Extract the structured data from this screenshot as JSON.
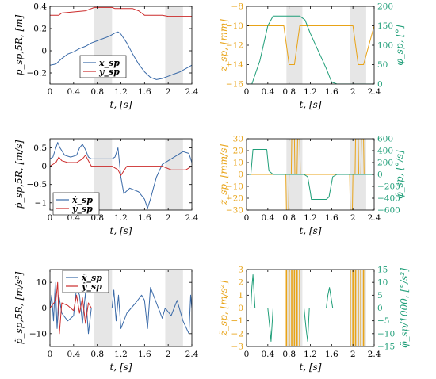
{
  "colors": {
    "blue": "#3a6aa8",
    "red": "#cc2b2b",
    "orange": "#e8a317",
    "green": "#1f9e78",
    "shade": "#e6e6e6"
  },
  "chart_data": [
    {
      "type": "line",
      "id": "pos-xy",
      "xlabel": "t, [s]",
      "ylabel": "p_sp,5R, [m]",
      "xlim": [
        0,
        2.4
      ],
      "ylim": [
        -0.3,
        0.4
      ],
      "xticks": [
        "0",
        "0.4",
        "0.8",
        "1.2",
        "1.6",
        "2",
        "2.4"
      ],
      "yticks": [
        "0.4",
        "0.2",
        "0",
        "−0.2"
      ],
      "shaded_intervals": [
        [
          0.75,
          1.05
        ],
        [
          1.95,
          2.25
        ]
      ],
      "legend": [
        "x_sp",
        "y_sp"
      ],
      "series": [
        {
          "name": "x_sp",
          "color": "blue",
          "x": [
            0,
            0.1,
            0.2,
            0.3,
            0.4,
            0.5,
            0.6,
            0.7,
            0.8,
            0.9,
            1.0,
            1.1,
            1.15,
            1.2,
            1.3,
            1.4,
            1.5,
            1.6,
            1.7,
            1.8,
            1.9,
            2.0,
            2.1,
            2.2,
            2.3,
            2.4
          ],
          "y": [
            -0.13,
            -0.12,
            -0.07,
            -0.03,
            -0.01,
            0.02,
            0.04,
            0.07,
            0.09,
            0.11,
            0.13,
            0.16,
            0.17,
            0.15,
            0.07,
            -0.03,
            -0.12,
            -0.19,
            -0.24,
            -0.26,
            -0.25,
            -0.23,
            -0.21,
            -0.19,
            -0.16,
            -0.13
          ]
        },
        {
          "name": "y_sp",
          "color": "red",
          "x": [
            0,
            0.15,
            0.2,
            0.4,
            0.6,
            0.7,
            0.75,
            1.05,
            1.1,
            1.4,
            1.5,
            1.6,
            1.9,
            2.0,
            2.4
          ],
          "y": [
            0.32,
            0.32,
            0.34,
            0.35,
            0.36,
            0.38,
            0.39,
            0.39,
            0.38,
            0.38,
            0.36,
            0.32,
            0.32,
            0.31,
            0.31
          ]
        }
      ]
    },
    {
      "type": "line",
      "id": "pos-z-phi",
      "xlabel": "t, [s]",
      "ylabel": "z_sp, [mm]",
      "y2label": "φ_sp, [°]",
      "xlim": [
        0,
        2.4
      ],
      "ylim": [
        -16,
        -8
      ],
      "y2lim": [
        0,
        200
      ],
      "xticks": [
        "0",
        "0.4",
        "0.8",
        "1.2",
        "1.6",
        "2",
        "2.4"
      ],
      "yticks": [
        "−8",
        "−10",
        "−12",
        "−14",
        "−16"
      ],
      "y2ticks": [
        "200",
        "150",
        "100",
        "50",
        "0"
      ],
      "shaded_intervals": [
        [
          0.75,
          1.05
        ],
        [
          1.95,
          2.25
        ]
      ],
      "series": [
        {
          "name": "z_sp",
          "color": "orange",
          "axis": "left",
          "x": [
            0,
            0.7,
            0.8,
            0.9,
            1.0,
            2.0,
            2.1,
            2.2,
            2.4
          ],
          "y": [
            -10,
            -10,
            -14,
            -14,
            -10,
            -10,
            -14,
            -14,
            -10
          ]
        },
        {
          "name": "φ_sp",
          "color": "green",
          "axis": "right",
          "x": [
            0,
            0.1,
            0.25,
            0.4,
            0.5,
            1.0,
            1.1,
            1.2,
            1.5,
            1.6,
            1.7,
            2.4
          ],
          "y": [
            0,
            0,
            60,
            150,
            175,
            175,
            165,
            130,
            40,
            5,
            0,
            0
          ]
        }
      ]
    },
    {
      "type": "line",
      "id": "vel-xy",
      "xlabel": "t, [s]",
      "ylabel": "ṗ_sp,5R, [m/s]",
      "xlim": [
        0,
        2.4
      ],
      "ylim": [
        -1.2,
        0.75
      ],
      "xticks": [
        "0",
        "0.4",
        "0.8",
        "1.2",
        "1.6",
        "2",
        "2.4"
      ],
      "yticks": [
        "0.5",
        "0",
        "−0.5",
        "−1"
      ],
      "shaded_intervals": [
        [
          0.75,
          1.05
        ],
        [
          1.95,
          2.25
        ]
      ],
      "legend": [
        "ẋ_sp",
        "ẏ_sp"
      ],
      "series": [
        {
          "name": "ẋ_sp",
          "color": "blue",
          "x": [
            0,
            0.05,
            0.1,
            0.13,
            0.17,
            0.25,
            0.35,
            0.45,
            0.5,
            0.55,
            0.6,
            0.65,
            0.7,
            1.05,
            1.1,
            1.15,
            1.2,
            1.25,
            1.35,
            1.5,
            1.6,
            1.65,
            1.7,
            1.75,
            1.8,
            1.9,
            2.05,
            2.15,
            2.25,
            2.35,
            2.38,
            2.4
          ],
          "y": [
            0.2,
            0.25,
            0.5,
            0.65,
            0.5,
            0.3,
            0.25,
            0.3,
            0.5,
            0.6,
            0.45,
            0.25,
            0.2,
            0.2,
            0.25,
            0.5,
            -0.3,
            -0.75,
            -0.6,
            -0.7,
            -0.9,
            -1.15,
            -0.9,
            -0.6,
            -0.3,
            0.05,
            0.2,
            0.3,
            0.4,
            0.35,
            0.2,
            0.1
          ]
        },
        {
          "name": "ẏ_sp",
          "color": "red",
          "x": [
            0,
            0.1,
            0.15,
            0.2,
            0.3,
            0.45,
            0.55,
            0.6,
            0.7,
            1.05,
            1.15,
            1.2,
            1.3,
            1.9,
            2.05,
            2.2,
            2.3,
            2.4
          ],
          "y": [
            0,
            0.1,
            0.25,
            0.15,
            0.1,
            0.1,
            0.2,
            0.3,
            0,
            0,
            -0.1,
            -0.25,
            0,
            0,
            -0.1,
            -0.1,
            -0.1,
            0
          ]
        }
      ]
    },
    {
      "type": "line",
      "id": "vel-z-phi",
      "xlabel": "t, [s]",
      "ylabel": "ż_sp, [mm/s]",
      "y2label": "φ̇_sp, [°/s]",
      "xlim": [
        0,
        2.4
      ],
      "ylim": [
        -30,
        30
      ],
      "y2lim": [
        -600,
        600
      ],
      "xticks": [
        "0",
        "0.4",
        "0.8",
        "1.2",
        "1.6",
        "2",
        "2.4"
      ],
      "yticks": [
        "30",
        "20",
        "10",
        "0",
        "−10",
        "−20",
        "−30"
      ],
      "y2ticks": [
        "600",
        "400",
        "200",
        "0",
        "−200",
        "−400",
        "−600"
      ],
      "shaded_intervals": [
        [
          0.75,
          1.05
        ],
        [
          1.95,
          2.25
        ]
      ],
      "series": [
        {
          "name": "ż_sp",
          "color": "orange",
          "axis": "left",
          "x": [
            0,
            0.74,
            0.75,
            0.79,
            0.8,
            0.84,
            0.85,
            0.9,
            0.91,
            0.95,
            0.96,
            1.0,
            1.01,
            1.94,
            1.95,
            1.99,
            2.0,
            2.04,
            2.05,
            2.1,
            2.11,
            2.15,
            2.16,
            2.2,
            2.21,
            2.4
          ],
          "y": [
            0,
            0,
            -30,
            -30,
            0,
            0,
            30,
            30,
            0,
            0,
            30,
            30,
            0,
            0,
            -30,
            -30,
            0,
            0,
            30,
            30,
            0,
            0,
            30,
            30,
            0,
            0
          ]
        },
        {
          "name": "φ̇_sp",
          "color": "green",
          "axis": "right",
          "x": [
            0,
            0.08,
            0.12,
            0.38,
            0.42,
            0.5,
            1.08,
            1.15,
            1.2,
            1.22,
            1.5,
            1.55,
            1.62,
            1.7,
            2.4
          ],
          "y": [
            0,
            0,
            420,
            420,
            60,
            0,
            0,
            -40,
            -300,
            -420,
            -420,
            -380,
            -40,
            0,
            0
          ]
        }
      ]
    },
    {
      "type": "line",
      "id": "acc-xy",
      "xlabel": "t, [s]",
      "ylabel": "p̈_sp,5R, [m/s²]",
      "xlim": [
        0,
        2.4
      ],
      "ylim": [
        -15,
        15
      ],
      "xticks": [
        "0",
        "0.4",
        "0.8",
        "1.2",
        "1.6",
        "2",
        "2.4"
      ],
      "yticks": [
        "10",
        "0",
        "−10"
      ],
      "shaded_intervals": [
        [
          0.75,
          1.05
        ],
        [
          1.95,
          2.25
        ]
      ],
      "legend": [
        "ẍ_sp",
        "ÿ_sp"
      ],
      "series": [
        {
          "name": "ẍ_sp",
          "color": "blue",
          "x": [
            0,
            0.03,
            0.06,
            0.09,
            0.12,
            0.15,
            0.2,
            0.3,
            0.4,
            0.45,
            0.5,
            0.55,
            0.6,
            0.65,
            0.7,
            1.05,
            1.08,
            1.12,
            1.16,
            1.2,
            1.3,
            1.45,
            1.55,
            1.6,
            1.65,
            1.7,
            1.8,
            1.9,
            1.95,
            2.05,
            2.15,
            2.25,
            2.35,
            2.38,
            2.4
          ],
          "y": [
            0,
            5,
            -5,
            10,
            -8,
            5,
            -2,
            -5,
            -3,
            8,
            5,
            -6,
            6,
            -10,
            0,
            0,
            7,
            -5,
            5,
            -8,
            -2,
            2,
            5,
            3,
            -8,
            8,
            2,
            -4,
            0,
            -3,
            3,
            -5,
            -10,
            5,
            0
          ]
        },
        {
          "name": "ÿ_sp",
          "color": "red",
          "x": [
            0,
            0.1,
            0.13,
            0.16,
            0.2,
            0.3,
            0.4,
            0.45,
            0.5,
            0.55,
            0.6,
            0.65,
            0.7,
            2.4
          ],
          "y": [
            0,
            3,
            10,
            -10,
            2,
            1,
            -1,
            5,
            -2,
            4,
            -6,
            2,
            0,
            0
          ]
        }
      ]
    },
    {
      "type": "line",
      "id": "acc-z-phi",
      "xlabel": "t, [s]",
      "ylabel": "z̈_sp, [m/s²]",
      "y2label": "φ̈_sp/1000, [°/s²]",
      "xlim": [
        0,
        2.4
      ],
      "ylim": [
        -3,
        3
      ],
      "y2lim": [
        -15,
        15
      ],
      "xticks": [
        "0",
        "0.4",
        "0.8",
        "1.2",
        "1.6",
        "2",
        "2.4"
      ],
      "yticks": [
        "3",
        "2",
        "1",
        "0",
        "−1",
        "−2",
        "−3"
      ],
      "y2ticks": [
        "15",
        "10",
        "5",
        "0",
        "−5",
        "−10",
        "−15"
      ],
      "shaded_intervals": [
        [
          0.75,
          1.05
        ],
        [
          1.95,
          2.25
        ]
      ],
      "series": [
        {
          "name": "z̈_sp",
          "color": "orange",
          "axis": "left",
          "spikes": [
            0.75,
            0.8,
            0.85,
            0.9,
            0.95,
            1.0,
            1.95,
            2.0,
            2.05,
            2.1,
            2.15,
            2.2
          ],
          "y": 3
        },
        {
          "name": "φ̈_sp",
          "color": "green",
          "axis": "right",
          "x": [
            0,
            0.08,
            0.1,
            0.12,
            0.16,
            0.4,
            0.44,
            0.46,
            0.5,
            0.6,
            1.08,
            1.12,
            1.15,
            1.18,
            1.5,
            1.53,
            1.56,
            1.62,
            2.4
          ],
          "y": [
            0,
            0,
            8,
            13,
            0,
            0,
            -8,
            -13,
            0,
            0,
            0,
            -8,
            -13,
            0,
            0,
            5,
            8,
            0,
            0
          ]
        }
      ]
    }
  ]
}
